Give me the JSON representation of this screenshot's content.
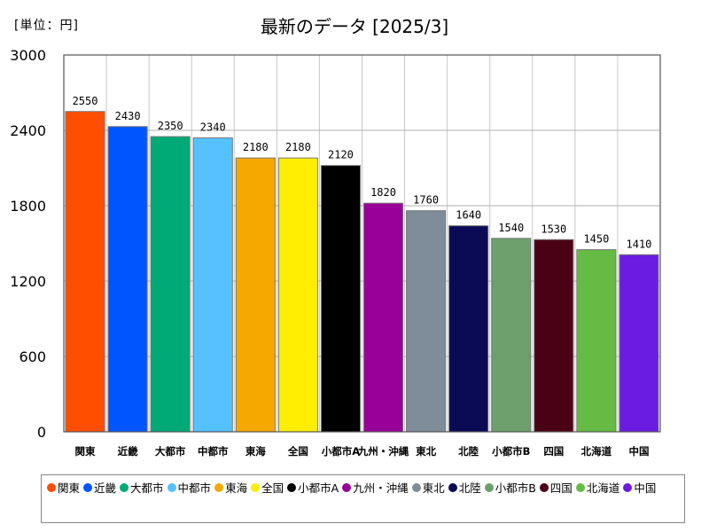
{
  "unit_label": "[単位：円]",
  "title": "最新のデータ [2025/3]",
  "chart_data": {
    "type": "bar",
    "title": "最新のデータ [2025/3]",
    "unit": "[単位：円]",
    "ylim": [
      0,
      3000
    ],
    "yticks": [
      0,
      600,
      1200,
      1800,
      2400,
      3000
    ],
    "grid": true,
    "legend_position": "bottom",
    "categories": [
      "関東",
      "近畿",
      "大都市",
      "中都市",
      "東海",
      "全国",
      "小都市A",
      "九州・沖縄",
      "東北",
      "北陸",
      "小都市B",
      "四国",
      "北海道",
      "中国"
    ],
    "axis_labels": [
      "関東",
      "近畿",
      "大都市",
      "中都市",
      "東海",
      "全国",
      "小都市A",
      "九州・沖縄",
      "東北",
      "北陸",
      "小都市B",
      "四国",
      "北海道",
      "中国"
    ],
    "values": [
      2550,
      2430,
      2350,
      2340,
      2180,
      2180,
      2120,
      1820,
      1760,
      1640,
      1540,
      1530,
      1450,
      1410
    ],
    "colors": [
      "#FF4E00",
      "#0055FF",
      "#00AA77",
      "#55C2FF",
      "#F5A800",
      "#FFEE00",
      "#000000",
      "#990099",
      "#7F8C99",
      "#0A0A55",
      "#6DA06D",
      "#4A0015",
      "#66BB44",
      "#6A1CE0"
    ]
  }
}
